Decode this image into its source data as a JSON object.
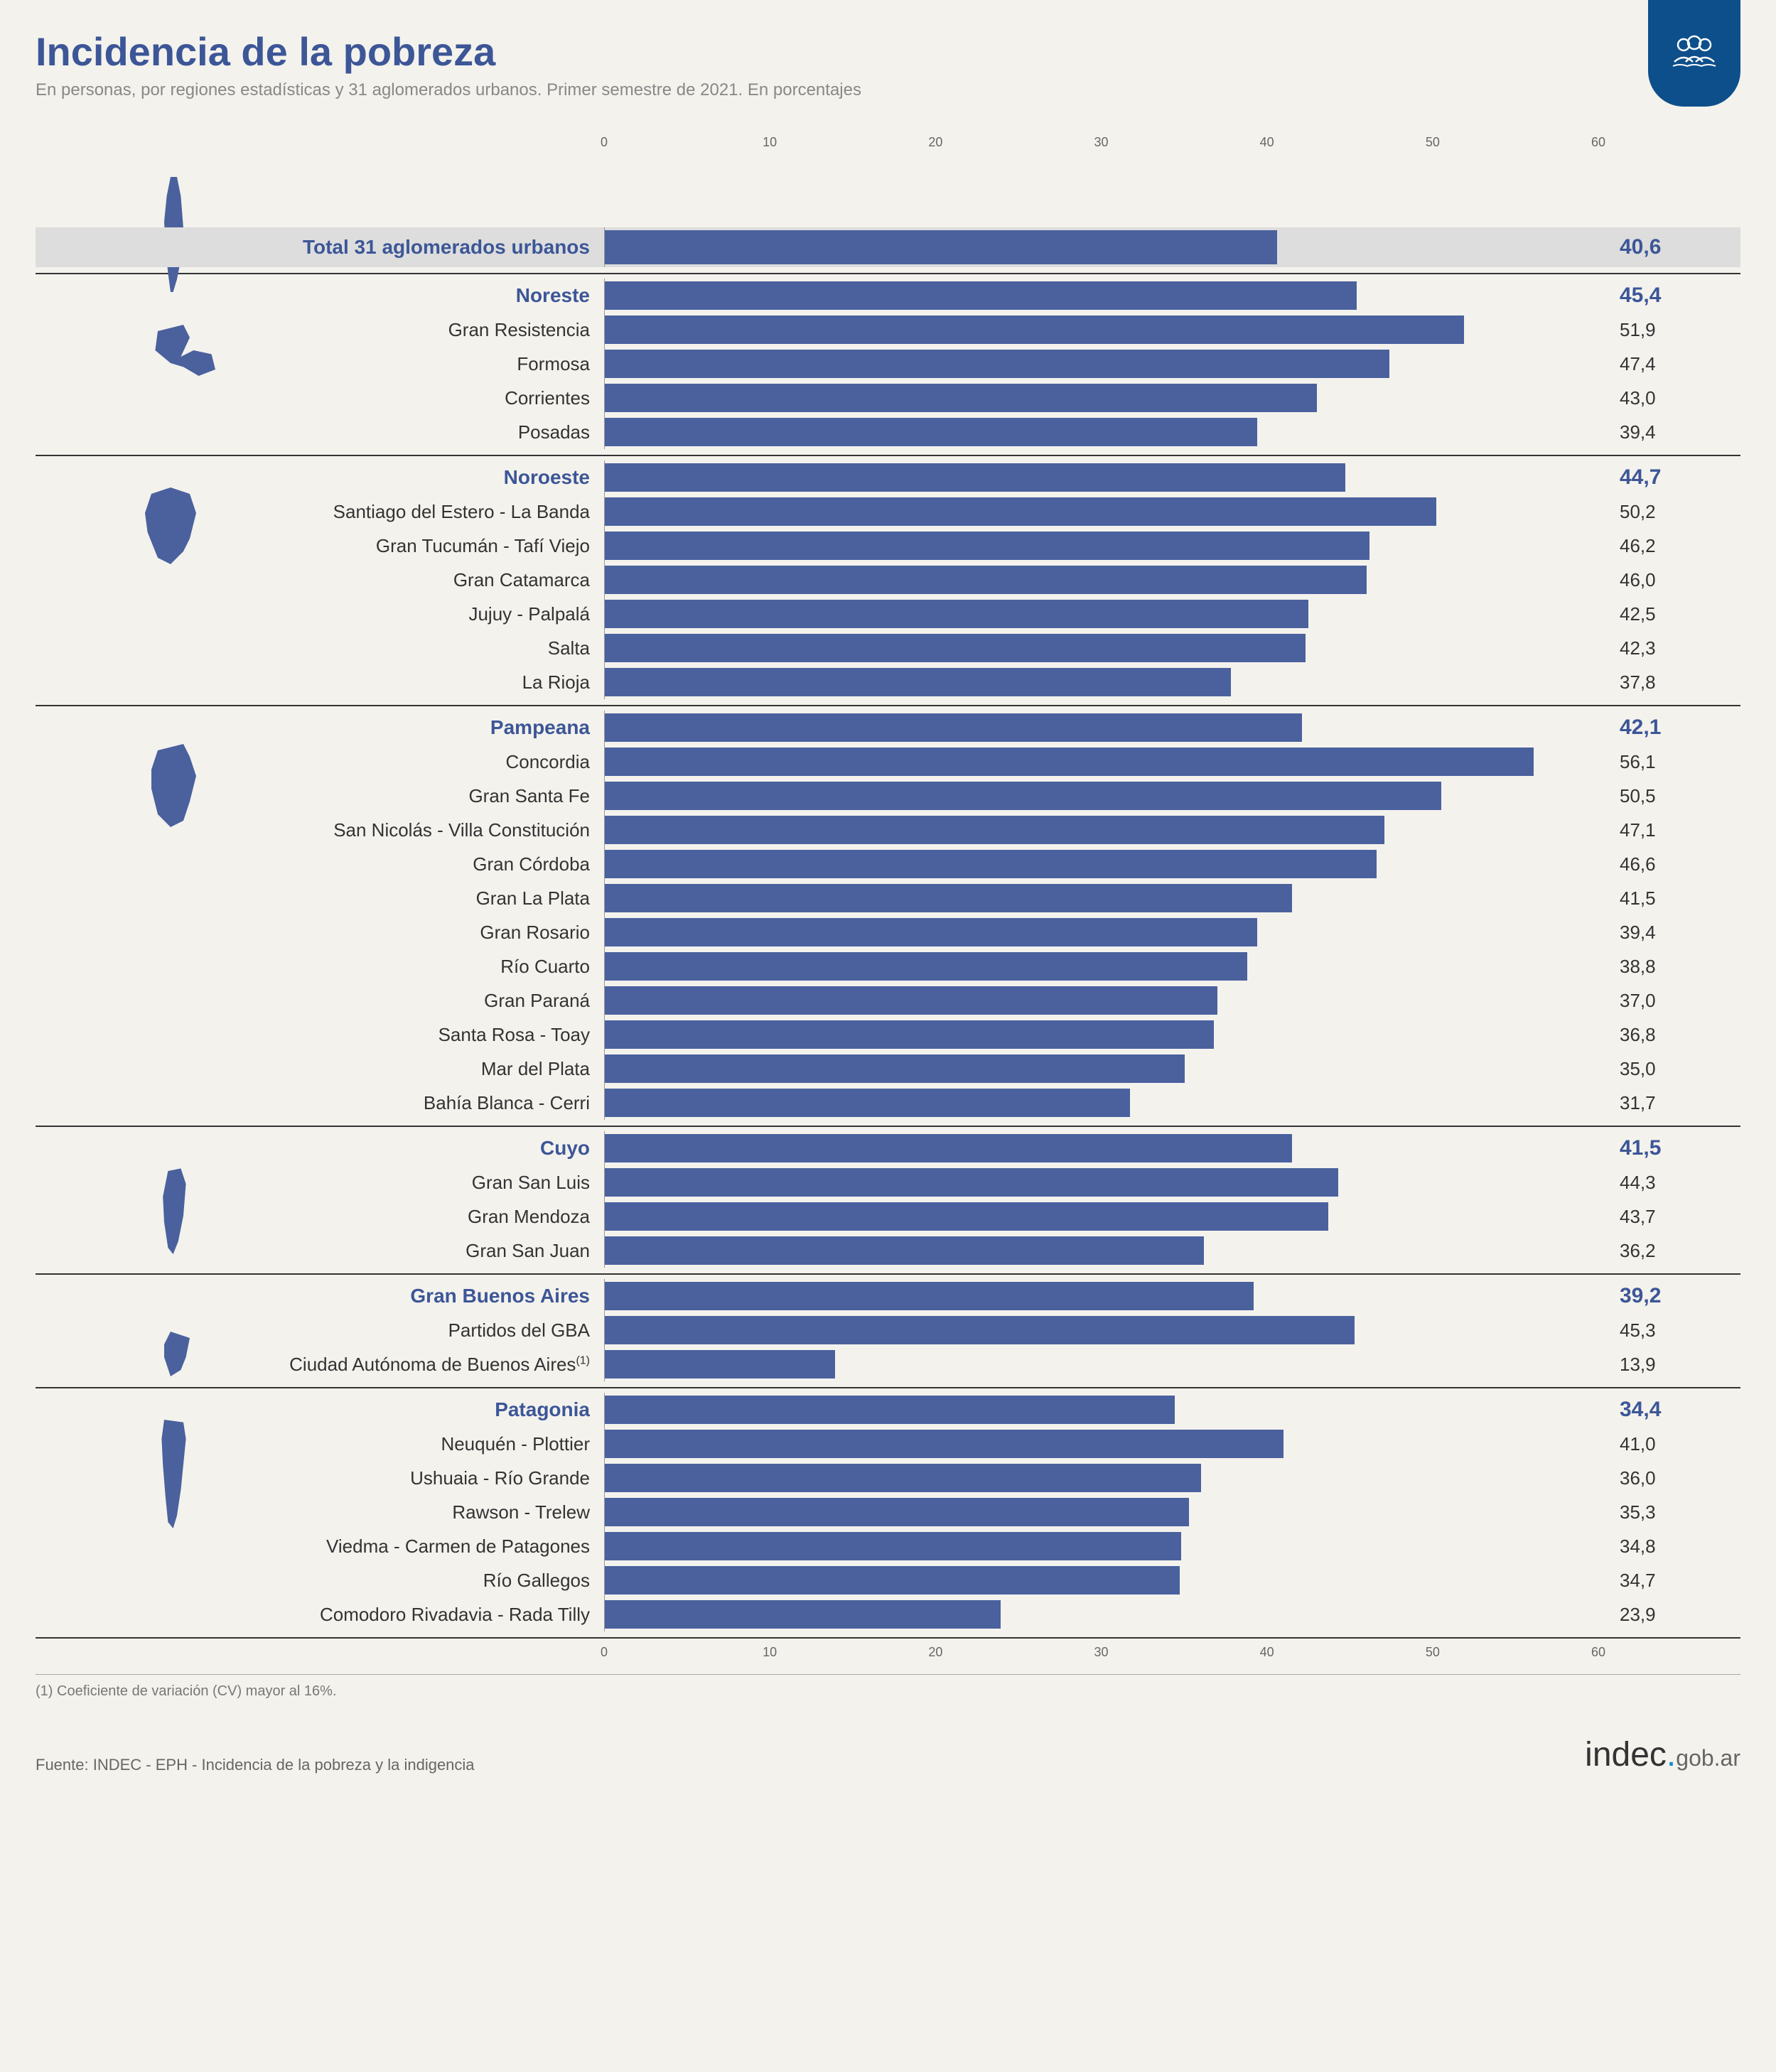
{
  "title": "Incidencia de la pobreza",
  "subtitle": "En personas, por regiones estadísticas y 31 aglomerados urbanos. Primer semestre de 2021. En porcentajes",
  "axis": {
    "min": 0,
    "max": 60,
    "ticks": [
      0,
      10,
      20,
      30,
      40,
      50,
      60
    ]
  },
  "colors": {
    "primary": "#3c5697",
    "bar": "#4a619e",
    "badge": "#0d4f8b",
    "text": "#333333",
    "muted": "#888888",
    "bg": "#f4f2ed",
    "total_bg": "#dddddd"
  },
  "fonts": {
    "title": 56,
    "subtitle": 24,
    "label": 26,
    "region_label": 28,
    "value": 26,
    "tick": 18
  },
  "total": {
    "label": "Total 31 aglomerados urbanos",
    "value": 40.6,
    "display": "40,6"
  },
  "sections": [
    {
      "region": "Noreste",
      "region_value": 45.4,
      "region_display": "45,4",
      "rows": [
        {
          "label": "Gran Resistencia",
          "value": 51.9,
          "display": "51,9"
        },
        {
          "label": "Formosa",
          "value": 47.4,
          "display": "47,4"
        },
        {
          "label": "Corrientes",
          "value": 43.0,
          "display": "43,0"
        },
        {
          "label": "Posadas",
          "value": 39.4,
          "display": "39,4"
        }
      ]
    },
    {
      "region": "Noroeste",
      "region_value": 44.7,
      "region_display": "44,7",
      "rows": [
        {
          "label": "Santiago del Estero - La Banda",
          "value": 50.2,
          "display": "50,2"
        },
        {
          "label": "Gran Tucumán - Tafí Viejo",
          "value": 46.2,
          "display": "46,2"
        },
        {
          "label": "Gran Catamarca",
          "value": 46.0,
          "display": "46,0"
        },
        {
          "label": "Jujuy -  Palpalá",
          "value": 42.5,
          "display": "42,5"
        },
        {
          "label": "Salta",
          "value": 42.3,
          "display": "42,3"
        },
        {
          "label": "La Rioja",
          "value": 37.8,
          "display": "37,8"
        }
      ]
    },
    {
      "region": "Pampeana",
      "region_value": 42.1,
      "region_display": "42,1",
      "rows": [
        {
          "label": "Concordia",
          "value": 56.1,
          "display": "56,1"
        },
        {
          "label": "Gran Santa Fe",
          "value": 50.5,
          "display": "50,5"
        },
        {
          "label": "San Nicolás - Villa Constitución",
          "value": 47.1,
          "display": "47,1"
        },
        {
          "label": "Gran Córdoba",
          "value": 46.6,
          "display": "46,6"
        },
        {
          "label": "Gran La Plata",
          "value": 41.5,
          "display": "41,5"
        },
        {
          "label": "Gran Rosario",
          "value": 39.4,
          "display": "39,4"
        },
        {
          "label": "Río Cuarto",
          "value": 38.8,
          "display": "38,8"
        },
        {
          "label": "Gran Paraná",
          "value": 37.0,
          "display": "37,0"
        },
        {
          "label": "Santa Rosa - Toay",
          "value": 36.8,
          "display": "36,8"
        },
        {
          "label": "Mar del Plata",
          "value": 35.0,
          "display": "35,0"
        },
        {
          "label": "Bahía Blanca - Cerri",
          "value": 31.7,
          "display": "31,7"
        }
      ]
    },
    {
      "region": "Cuyo",
      "region_value": 41.5,
      "region_display": "41,5",
      "rows": [
        {
          "label": "Gran San Luis",
          "value": 44.3,
          "display": "44,3"
        },
        {
          "label": "Gran Mendoza",
          "value": 43.7,
          "display": "43,7"
        },
        {
          "label": "Gran San Juan",
          "value": 36.2,
          "display": "36,2"
        }
      ]
    },
    {
      "region": "Gran Buenos Aires",
      "region_value": 39.2,
      "region_display": "39,2",
      "rows": [
        {
          "label": "Partidos del GBA",
          "value": 45.3,
          "display": "45,3"
        },
        {
          "label": "Ciudad Autónoma de Buenos Aires",
          "value": 13.9,
          "display": "13,9",
          "note": "(1)"
        }
      ]
    },
    {
      "region": "Patagonia",
      "region_value": 34.4,
      "region_display": "34,4",
      "rows": [
        {
          "label": "Neuquén - Plottier",
          "value": 41.0,
          "display": "41,0"
        },
        {
          "label": "Ushuaia - Río Grande",
          "value": 36.0,
          "display": "36,0"
        },
        {
          "label": "Rawson - Trelew",
          "value": 35.3,
          "display": "35,3"
        },
        {
          "label": "Viedma - Carmen de Patagones",
          "value": 34.8,
          "display": "34,8"
        },
        {
          "label": "Río Gallegos",
          "value": 34.7,
          "display": "34,7"
        },
        {
          "label": "Comodoro Rivadavia - Rada Tilly",
          "value": 23.9,
          "display": "23,9"
        }
      ]
    }
  ],
  "footnote": "(1) Coeficiente de variación (CV) mayor al 16%.",
  "source": "Fuente: INDEC - EPH - Incidencia de la pobreza y la indigencia",
  "logo": {
    "main": "indec",
    "dot": ".",
    "gob": "gob.ar"
  },
  "map_shapes": [
    "M40,5 L45,5 L48,20 L50,45 L48,70 L45,85 L42,95 L40,95 L38,80 L36,60 L35,40 L37,20 Z",
    "M30,30 L50,25 L55,35 L48,50 L58,45 L72,48 L75,60 L62,65 L50,58 L40,55 L28,45 Z",
    "M25,15 L40,10 L55,15 L60,30 L55,50 L50,60 L40,70 L30,65 L22,45 L20,30 Z M35,25 L45,25 L50,40 L40,50 L30,40 Z",
    "M30,20 L50,15 L55,25 L60,40 L55,60 L50,75 L40,80 L30,70 L25,50 L25,35 Z M38,30 L48,30 L50,50 L40,55 L35,45 Z",
    "M38,20 L48,18 L52,30 L50,55 L46,75 L42,85 L38,80 L35,60 L34,40 Z",
    "M40,30 L55,35 L52,50 L48,60 L40,65 L35,50 L35,40 Z M42,55 L44,58 L42,60 Z",
    "M35,10 L50,12 L52,25 L50,45 L48,65 L45,85 L42,95 L38,90 L36,70 L34,45 L33,25 Z"
  ]
}
